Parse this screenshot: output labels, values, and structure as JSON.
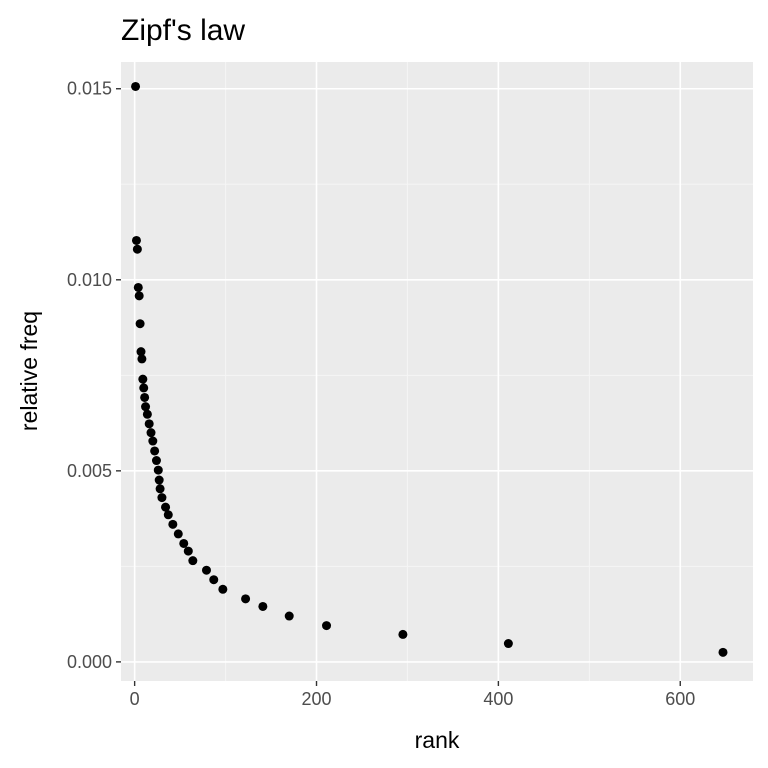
{
  "chart_data": {
    "type": "scatter",
    "title": "Zipf's law",
    "xlabel": "rank",
    "ylabel": "relative freq",
    "xlim": [
      -15,
      680
    ],
    "ylim": [
      -0.0005,
      0.0157
    ],
    "x_ticks": [
      0,
      200,
      400,
      600
    ],
    "x_tick_labels": [
      "0",
      "200",
      "400",
      "600"
    ],
    "y_ticks": [
      0.0,
      0.005,
      0.01,
      0.015
    ],
    "y_tick_labels": [
      "0.000",
      "0.005",
      "0.010",
      "0.015"
    ],
    "grid": true,
    "legend": "none",
    "colors": {
      "panel": "#ebebeb",
      "grid_major": "#ffffff",
      "grid_minor": "#f5f5f5",
      "point": "#000000",
      "axis_tick": "#333333"
    },
    "points": [
      {
        "x": 1,
        "y": 0.01506
      },
      {
        "x": 2,
        "y": 0.01103
      },
      {
        "x": 3,
        "y": 0.0108
      },
      {
        "x": 4,
        "y": 0.0098
      },
      {
        "x": 5,
        "y": 0.00958
      },
      {
        "x": 6,
        "y": 0.00885
      },
      {
        "x": 7,
        "y": 0.00812
      },
      {
        "x": 8,
        "y": 0.00793
      },
      {
        "x": 9,
        "y": 0.0074
      },
      {
        "x": 10,
        "y": 0.00717
      },
      {
        "x": 11,
        "y": 0.00692
      },
      {
        "x": 12,
        "y": 0.00668
      },
      {
        "x": 14,
        "y": 0.00648
      },
      {
        "x": 16,
        "y": 0.00623
      },
      {
        "x": 18,
        "y": 0.006
      },
      {
        "x": 20,
        "y": 0.00578
      },
      {
        "x": 22,
        "y": 0.00552
      },
      {
        "x": 24,
        "y": 0.00527
      },
      {
        "x": 26,
        "y": 0.00502
      },
      {
        "x": 27,
        "y": 0.00476
      },
      {
        "x": 28,
        "y": 0.00453
      },
      {
        "x": 30,
        "y": 0.0043
      },
      {
        "x": 34,
        "y": 0.00405
      },
      {
        "x": 37,
        "y": 0.00385
      },
      {
        "x": 42,
        "y": 0.0036
      },
      {
        "x": 48,
        "y": 0.00335
      },
      {
        "x": 54,
        "y": 0.0031
      },
      {
        "x": 59,
        "y": 0.0029
      },
      {
        "x": 64,
        "y": 0.00265
      },
      {
        "x": 79,
        "y": 0.0024
      },
      {
        "x": 87,
        "y": 0.00215
      },
      {
        "x": 97,
        "y": 0.0019
      },
      {
        "x": 122,
        "y": 0.00165
      },
      {
        "x": 141,
        "y": 0.00145
      },
      {
        "x": 170,
        "y": 0.0012
      },
      {
        "x": 211,
        "y": 0.00095
      },
      {
        "x": 295,
        "y": 0.00072
      },
      {
        "x": 411,
        "y": 0.00048
      },
      {
        "x": 647,
        "y": 0.00025
      }
    ]
  }
}
